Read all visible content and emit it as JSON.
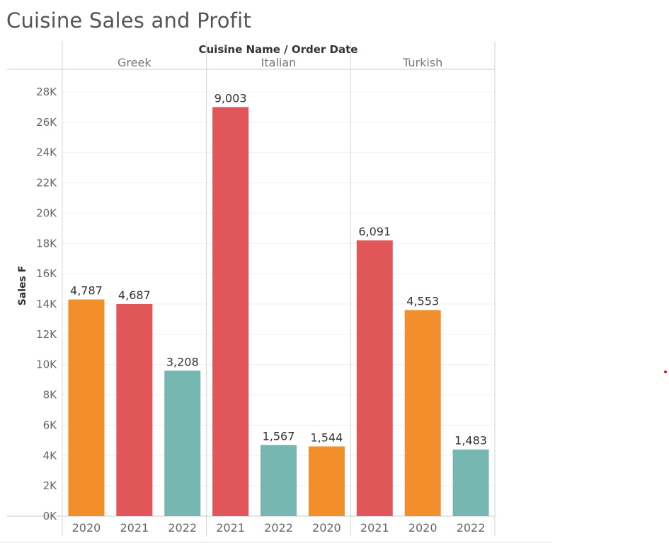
{
  "chart_data": {
    "type": "bar",
    "title": "Cuisine Sales and Profit",
    "column_title": "Cuisine Name  /  Order Date",
    "ylabel": "Sales F",
    "ylim": [
      0,
      28000
    ],
    "y_ticks": [
      0,
      2000,
      4000,
      6000,
      8000,
      10000,
      12000,
      14000,
      16000,
      18000,
      20000,
      22000,
      24000,
      26000,
      28000
    ],
    "y_tick_labels": [
      "0K",
      "2K",
      "4K",
      "6K",
      "8K",
      "10K",
      "12K",
      "14K",
      "16K",
      "18K",
      "20K",
      "22K",
      "24K",
      "26K",
      "28K"
    ],
    "grid": true,
    "colors": {
      "2020": "#f28e2b",
      "2021": "#e15759",
      "2022": "#76b7b2"
    },
    "groups": [
      {
        "name": "Greek",
        "bars": [
          {
            "year": "2020",
            "sales": 14300,
            "label": "4,787"
          },
          {
            "year": "2021",
            "sales": 14000,
            "label": "4,687"
          },
          {
            "year": "2022",
            "sales": 9600,
            "label": "3,208"
          }
        ]
      },
      {
        "name": "Italian",
        "bars": [
          {
            "year": "2021",
            "sales": 27000,
            "label": "9,003"
          },
          {
            "year": "2022",
            "sales": 4700,
            "label": "1,567"
          },
          {
            "year": "2020",
            "sales": 4600,
            "label": "1,544"
          }
        ]
      },
      {
        "name": "Turkish",
        "bars": [
          {
            "year": "2021",
            "sales": 18200,
            "label": "6,091"
          },
          {
            "year": "2020",
            "sales": 13600,
            "label": "4,553"
          },
          {
            "year": "2022",
            "sales": 4400,
            "label": "1,483"
          }
        ]
      }
    ]
  }
}
